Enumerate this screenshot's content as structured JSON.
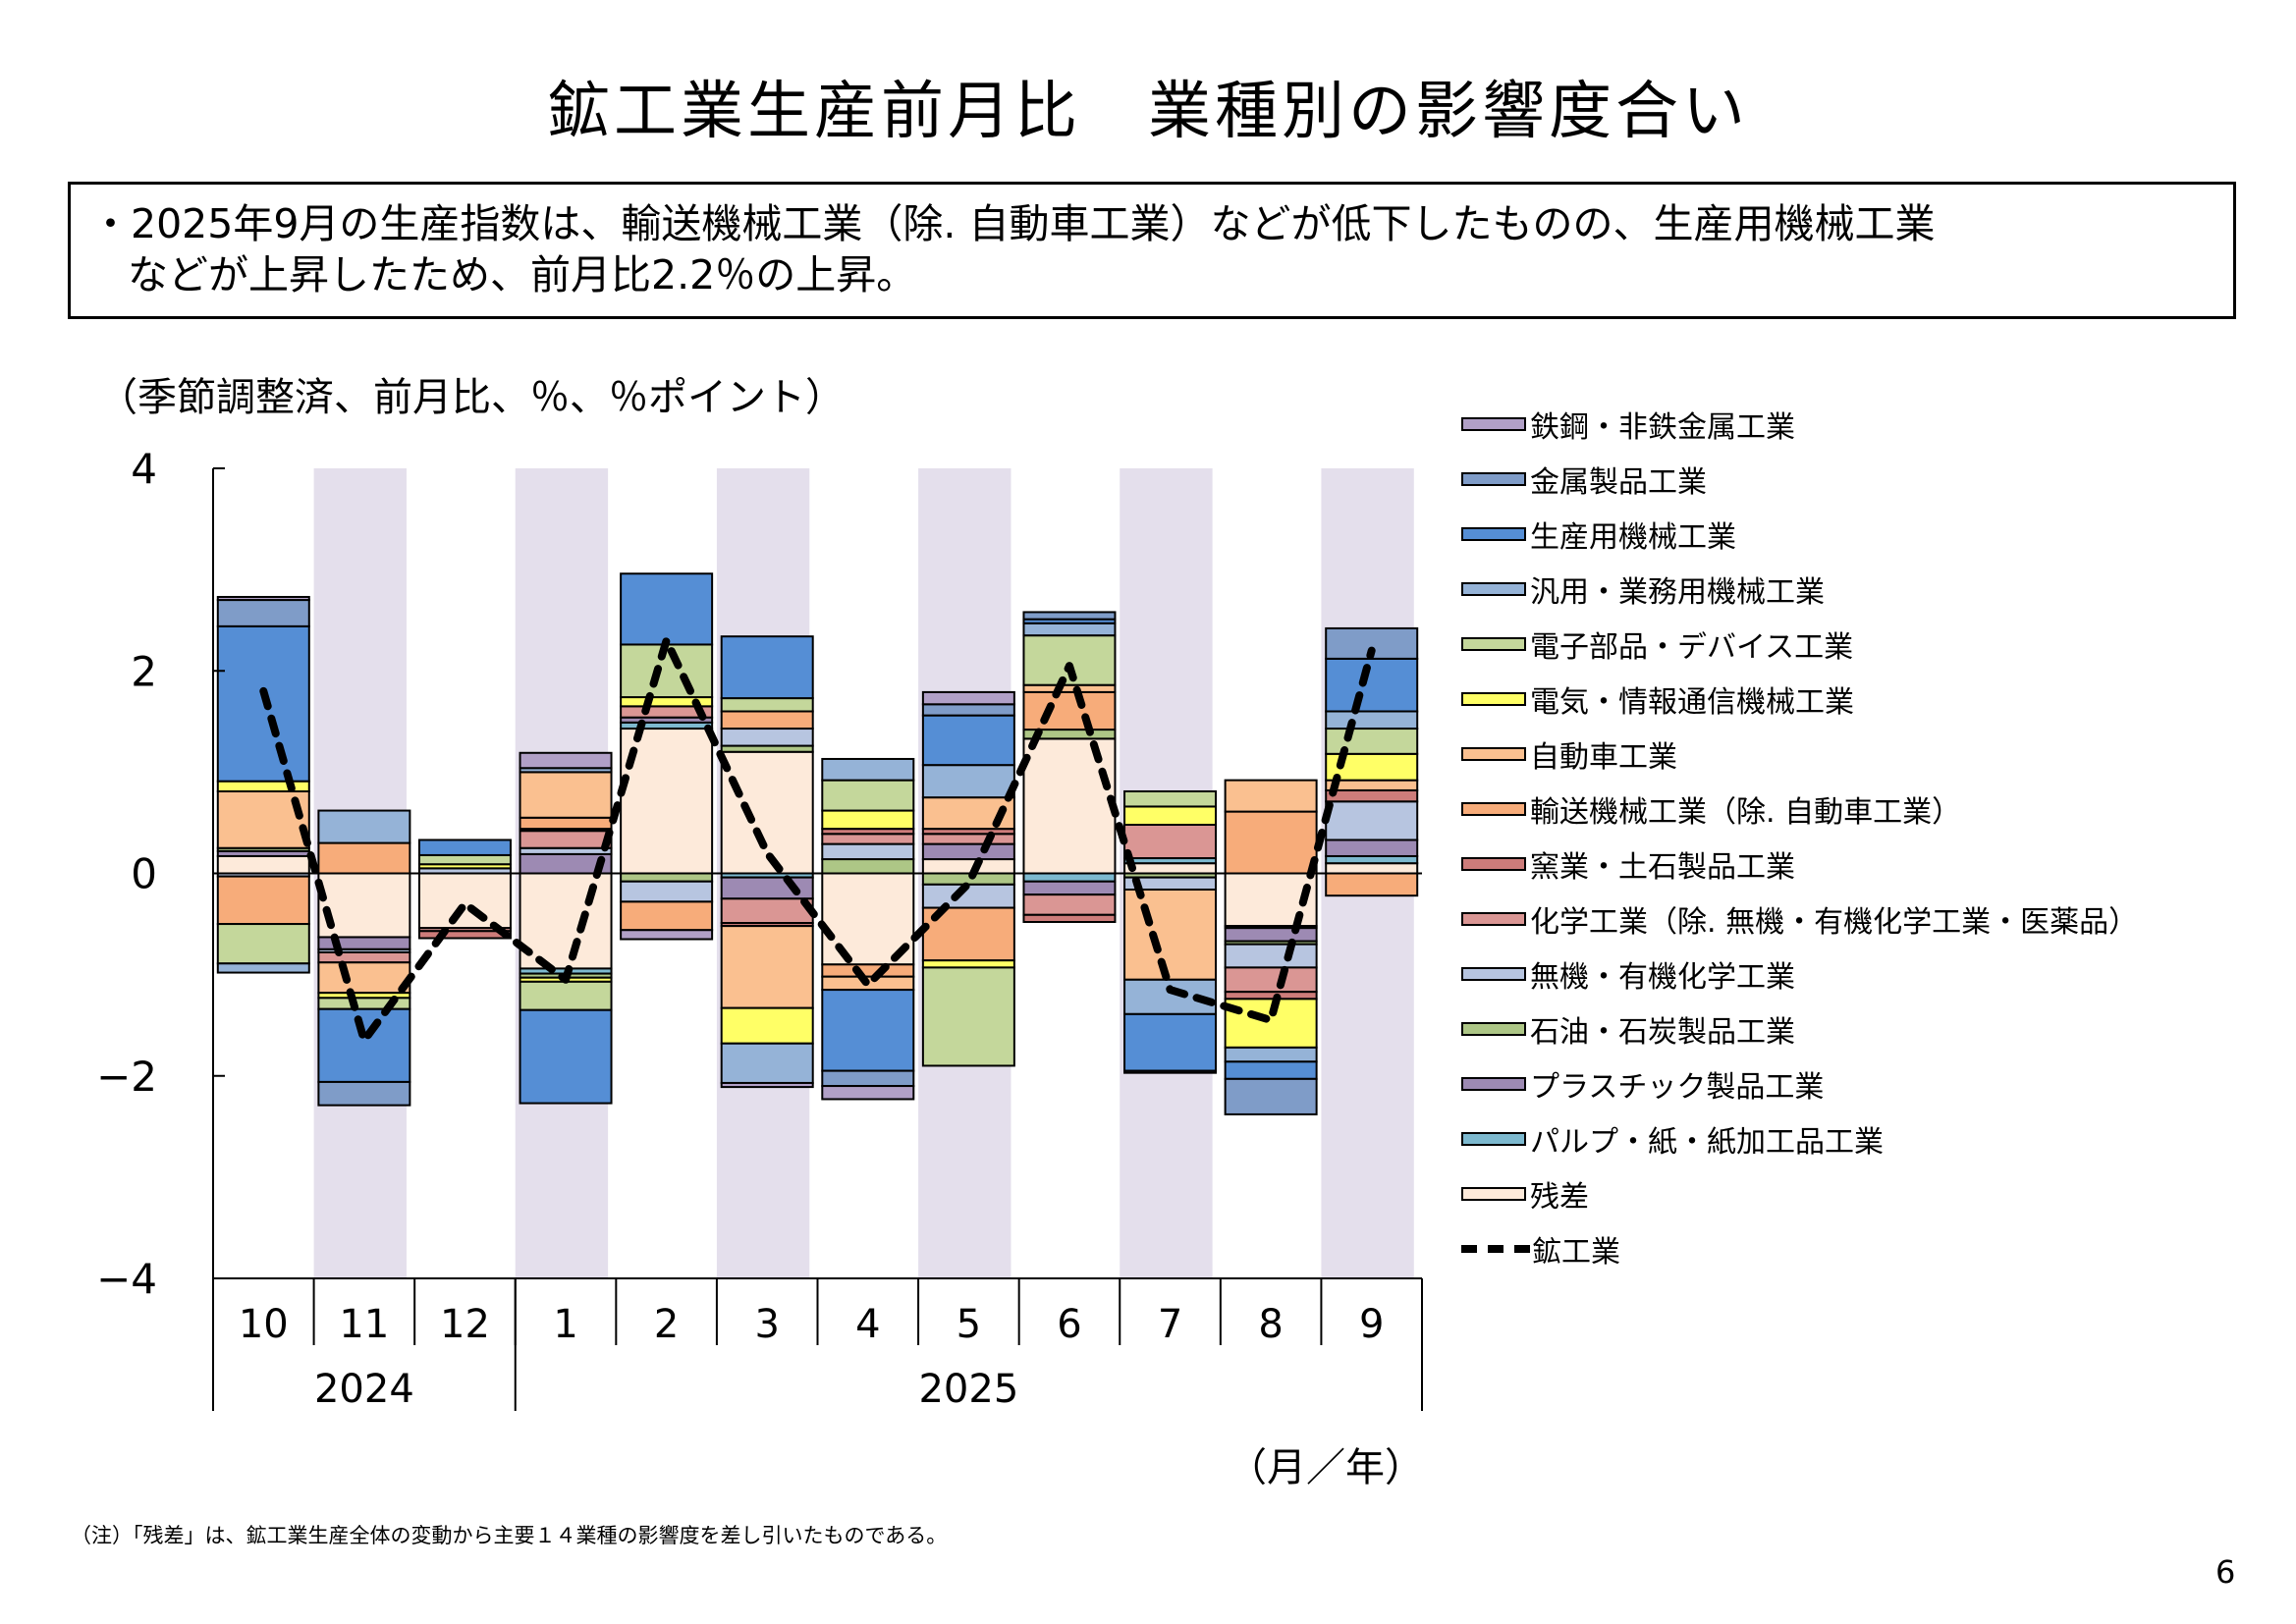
{
  "title": "鉱工業生産前月比　業種別の影響度合い",
  "summary": {
    "line1": "・2025年9月の生産指数は、輸送機械工業（除. 自動車工業）などが低下したものの、生産用機械工業",
    "line2": "などが上昇したため、前月比2.2％の上昇。"
  },
  "unit_label": "（季節調整済、前月比、％、％ポイント）",
  "x_unit_label": "（月／年）",
  "footnote": "（注）「残差」は、鉱工業生産全体の変動から主要１４業種の影響度を差し引いたものである。",
  "page_number": "6",
  "chart_data": {
    "type": "bar",
    "stacked": true,
    "title": "鉱工業生産前月比　業種別の影響度合い",
    "ylabel": "（季節調整済、前月比、％、％ポイント）",
    "xlabel": "（月／年）",
    "ylim": [
      -4,
      4
    ],
    "yticks": [
      4,
      2,
      0,
      -2,
      -4
    ],
    "ytick_labels": [
      "4",
      "2",
      "0",
      "−2",
      "−4"
    ],
    "categories": [
      "10",
      "11",
      "12",
      "1",
      "2",
      "3",
      "4",
      "5",
      "6",
      "7",
      "8",
      "9"
    ],
    "years": [
      {
        "label": "2024",
        "span": 3
      },
      {
        "label": "2025",
        "span": 9
      }
    ],
    "shaded_categories": [
      1,
      3,
      5,
      7,
      9,
      11
    ],
    "legend_position": "right",
    "series": [
      {
        "name": "鉄鋼・非鉄金属工業",
        "color": "#B1A0C7",
        "values": [
          0.03,
          0,
          0,
          0.15,
          -0.09,
          -0.04,
          -0.13,
          0.12,
          0,
          0,
          0,
          0
        ]
      },
      {
        "name": "金属製品工業",
        "color": "#7F9CC8",
        "values": [
          0.26,
          -0.23,
          0,
          0,
          0,
          0,
          -0.15,
          0.11,
          0.07,
          -0.02,
          -0.35,
          0.3
        ]
      },
      {
        "name": "生産用機械工業",
        "color": "#558ED5",
        "values": [
          1.53,
          -0.72,
          0.15,
          -0.92,
          0.7,
          0.61,
          -0.8,
          0.49,
          0.04,
          -0.56,
          -0.17,
          0.52
        ]
      },
      {
        "name": "汎用・業務用機械工業",
        "color": "#95B3D7",
        "values": [
          -0.09,
          0.32,
          0,
          0.04,
          0,
          -0.39,
          0.21,
          0.32,
          0.12,
          -0.34,
          -0.14,
          0.17
        ]
      },
      {
        "name": "電子部品・デバイス工業",
        "color": "#C4D79B",
        "values": [
          -0.39,
          -0.11,
          0.09,
          -0.28,
          0.52,
          0.13,
          0.3,
          -0.97,
          0.49,
          0.15,
          0,
          0.25
        ]
      },
      {
        "name": "電気・情報通信機械工業",
        "color": "#FFFF66",
        "values": [
          0.1,
          -0.05,
          0.04,
          -0.04,
          0.09,
          -0.35,
          0.18,
          -0.07,
          0,
          0.18,
          -0.48,
          0.26
        ]
      },
      {
        "name": "自動車工業",
        "color": "#FAC090",
        "values": [
          0.56,
          -0.3,
          0,
          0.45,
          0,
          -0.81,
          -0.13,
          0.31,
          0.07,
          -0.89,
          0.31,
          0.1
        ]
      },
      {
        "name": "輸送機械工業（除. 自動車工業）",
        "color": "#F7AC7A",
        "values": [
          -0.47,
          0.3,
          0,
          0.11,
          -0.28,
          0.17,
          -0.12,
          -0.52,
          0.37,
          0,
          0.61,
          -0.22
        ]
      },
      {
        "name": "窯業・土石製品工業",
        "color": "#CD7C7A",
        "values": [
          0,
          0,
          -0.07,
          0.02,
          0,
          -0.03,
          0.05,
          0.05,
          -0.07,
          0,
          -0.07,
          0.11
        ]
      },
      {
        "name": "化学工業（除. 無機・有機化学工業・医薬品）",
        "color": "#DA9694",
        "values": [
          0,
          -0.1,
          -0.03,
          0.17,
          0.11,
          -0.24,
          0.1,
          0.1,
          -0.2,
          0.33,
          -0.24,
          0
        ]
      },
      {
        "name": "無機・有機化学工業",
        "color": "#B7C5E0",
        "values": [
          -0.03,
          -0.03,
          0.05,
          0.06,
          -0.2,
          0.17,
          0.15,
          -0.23,
          0,
          -0.12,
          -0.23,
          0.38
        ]
      },
      {
        "name": "石油・石炭製品工業",
        "color": "#ADC686",
        "values": [
          0.03,
          0,
          0,
          -0.04,
          -0.08,
          0.06,
          0.14,
          -0.11,
          0.09,
          -0.04,
          -0.03,
          0
        ]
      },
      {
        "name": "プラスチック製品工業",
        "color": "#9D8AB3",
        "values": [
          0.05,
          -0.12,
          0,
          0.19,
          0.05,
          -0.21,
          0,
          0.15,
          -0.13,
          0,
          -0.13,
          0.16
        ]
      },
      {
        "name": "パルプ・紙・紙加工品工業",
        "color": "#7DB9CF",
        "values": [
          0,
          0,
          0,
          -0.05,
          0.06,
          -0.04,
          0,
          0,
          -0.08,
          0.05,
          -0.02,
          0.07
        ]
      },
      {
        "name": "残差",
        "color": "#FDEADA",
        "values": [
          0.17,
          -0.63,
          -0.54,
          -0.94,
          1.43,
          1.2,
          -0.9,
          0.14,
          1.33,
          0.1,
          -0.52,
          0.1
        ]
      }
    ],
    "line": {
      "name": "鉱工業",
      "color": "#000000",
      "style": "dashed",
      "values": [
        1.8,
        -1.65,
        -0.3,
        -1.05,
        2.3,
        0.2,
        -1.1,
        -0.1,
        2.05,
        -1.15,
        -1.45,
        2.2
      ]
    }
  }
}
